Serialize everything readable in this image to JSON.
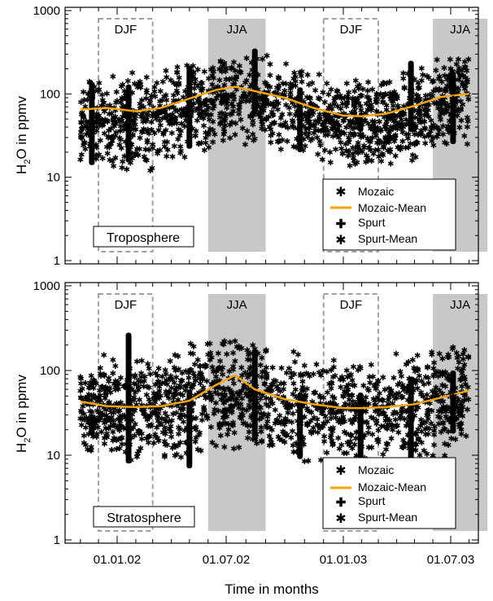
{
  "figure": {
    "xlabel": "Time in months",
    "x_tick_labels": [
      "01.01.02",
      "01.07.02",
      "01.01.03",
      "01.07.03"
    ],
    "colors": {
      "mozaic": "#6ed79a",
      "mozaic_mean": "#f5a300",
      "spurt": "#000000",
      "spurt_mean": "#1ee6f0",
      "jja_shade": "#c8c8c8",
      "djf_border": "#a0a0a0"
    }
  },
  "chart_data": [
    {
      "type": "scatter",
      "panel": "Troposphere",
      "ylabel_main": "H",
      "ylabel_sub": "2",
      "ylabel_rest": "O in ppmv",
      "yscale": "log",
      "ylim": [
        1,
        1000
      ],
      "xlim": [
        "2001-11-01",
        "2003-08-01"
      ],
      "y_tick_labels": [
        "1",
        "10",
        "100",
        "1000"
      ],
      "seasons": [
        {
          "label": "DJF",
          "start": "2001-12-01",
          "end": "2002-03-01",
          "style": "dashed"
        },
        {
          "label": "JJA",
          "start": "2002-06-01",
          "end": "2002-09-01",
          "style": "shaded"
        },
        {
          "label": "DJF",
          "start": "2002-12-01",
          "end": "2003-03-01",
          "style": "dashed"
        },
        {
          "label": "JJA",
          "start": "2003-06-01",
          "end": "2003-09-01",
          "style": "shaded"
        }
      ],
      "legend": {
        "position": "bottom-right",
        "entries": [
          "Mozaic",
          "Mozaic-Mean",
          "Spurt",
          "Spurt-Mean"
        ]
      },
      "series": [
        {
          "name": "Mozaic-Mean",
          "x": [
            "2001-11-01",
            "2001-12-15",
            "2002-02-01",
            "2002-03-15",
            "2002-05-01",
            "2002-06-15",
            "2002-07-15",
            "2002-08-15",
            "2002-10-01",
            "2002-11-15",
            "2003-01-01",
            "2003-02-01",
            "2003-03-15",
            "2003-05-01",
            "2003-06-15",
            "2003-08-01"
          ],
          "y": [
            65,
            68,
            62,
            68,
            88,
            112,
            122,
            108,
            90,
            68,
            55,
            54,
            58,
            72,
            92,
            100
          ]
        },
        {
          "name": "Mozaic (envelope)",
          "x": [
            "2001-11-01",
            "2001-12-15",
            "2002-02-01",
            "2002-03-15",
            "2002-05-01",
            "2002-06-15",
            "2002-07-15",
            "2002-08-15",
            "2002-10-01",
            "2002-11-15",
            "2003-01-01",
            "2003-02-01",
            "2003-03-15",
            "2003-05-01",
            "2003-06-15",
            "2003-08-01"
          ],
          "y_low": [
            15,
            12,
            10,
            12,
            16,
            20,
            22,
            20,
            20,
            15,
            12,
            12,
            13,
            15,
            20,
            22
          ],
          "y_high": [
            180,
            210,
            190,
            220,
            280,
            350,
            390,
            330,
            280,
            200,
            170,
            160,
            180,
            220,
            300,
            380
          ]
        },
        {
          "name": "Spurt",
          "x": [
            "2001-11-20",
            "2002-01-20",
            "2002-05-01",
            "2002-08-15",
            "2002-10-25",
            "2003-01-30",
            "2003-04-25",
            "2003-07-05"
          ],
          "y_low": [
            14,
            15,
            22,
            60,
            20,
            35,
            35,
            25
          ],
          "y_high": [
            140,
            130,
            220,
            350,
            120,
            50,
            250,
            180
          ],
          "y_mean": [
            40,
            54,
            58,
            155,
            52,
            33,
            110,
            87
          ]
        }
      ]
    },
    {
      "type": "scatter",
      "panel": "Stratosphere",
      "ylabel_main": "H",
      "ylabel_sub": "2",
      "ylabel_rest": "O in ppmv",
      "yscale": "log",
      "ylim": [
        1,
        1000
      ],
      "xlim": [
        "2001-11-01",
        "2003-08-01"
      ],
      "y_tick_labels": [
        "1",
        "10",
        "100",
        "1000"
      ],
      "seasons": [
        {
          "label": "DJF",
          "start": "2001-12-01",
          "end": "2002-03-01",
          "style": "dashed"
        },
        {
          "label": "JJA",
          "start": "2002-06-01",
          "end": "2002-09-01",
          "style": "shaded"
        },
        {
          "label": "DJF",
          "start": "2002-12-01",
          "end": "2003-03-01",
          "style": "dashed"
        },
        {
          "label": "JJA",
          "start": "2003-06-01",
          "end": "2003-09-01",
          "style": "shaded"
        }
      ],
      "legend": {
        "position": "bottom-right",
        "entries": [
          "Mozaic",
          "Mozaic-Mean",
          "Spurt",
          "Spurt-Mean"
        ]
      },
      "series": [
        {
          "name": "Mozaic-Mean",
          "x": [
            "2001-11-01",
            "2001-12-15",
            "2002-02-01",
            "2002-03-15",
            "2002-05-01",
            "2002-06-15",
            "2002-07-15",
            "2002-08-15",
            "2002-10-01",
            "2002-11-15",
            "2003-01-01",
            "2003-02-01",
            "2003-03-15",
            "2003-05-01",
            "2003-06-15",
            "2003-08-01"
          ],
          "y": [
            43,
            38,
            37,
            38,
            44,
            68,
            88,
            60,
            46,
            40,
            36,
            36,
            37,
            40,
            48,
            58
          ]
        },
        {
          "name": "Mozaic (envelope)",
          "x": [
            "2001-11-01",
            "2001-12-15",
            "2002-02-01",
            "2002-03-15",
            "2002-05-01",
            "2002-06-15",
            "2002-07-15",
            "2002-08-15",
            "2002-10-01",
            "2002-11-15",
            "2003-01-01",
            "2003-02-01",
            "2003-03-15",
            "2003-05-01",
            "2003-06-15",
            "2003-08-01"
          ],
          "y_low": [
            9,
            8,
            7,
            7,
            8,
            9,
            10,
            9,
            9,
            8,
            7,
            7,
            8,
            8,
            9,
            10
          ],
          "y_high": [
            150,
            160,
            150,
            170,
            220,
            300,
            330,
            260,
            210,
            160,
            140,
            140,
            160,
            190,
            230,
            270
          ]
        },
        {
          "name": "Spurt",
          "x": [
            "2001-11-20",
            "2002-01-20",
            "2002-05-01",
            "2002-08-15",
            "2002-10-25",
            "2003-01-30",
            "2003-04-25",
            "2003-07-05"
          ],
          "y_low": [
            17,
            8,
            7,
            15,
            9,
            9,
            7,
            18
          ],
          "y_high": [
            30,
            280,
            60,
            180,
            55,
            55,
            85,
            100
          ],
          "y_mean": [
            23,
            21,
            20,
            48,
            24,
            26,
            29,
            50
          ]
        }
      ]
    }
  ]
}
